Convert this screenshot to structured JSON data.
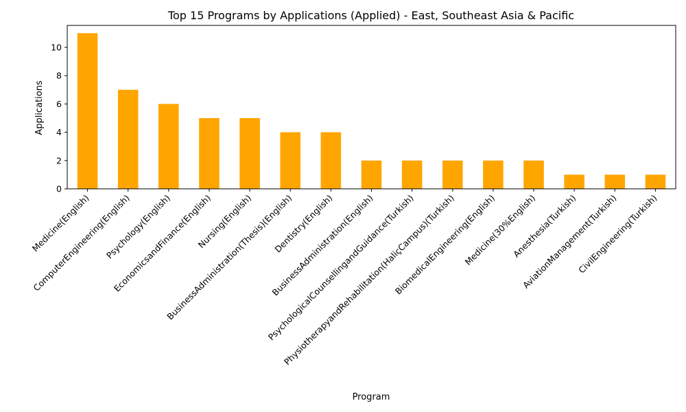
{
  "chart_data": {
    "type": "bar",
    "title": "Top 15 Programs by Applications (Applied) - East, Southeast Asia & Pacific",
    "xlabel": "Program",
    "ylabel": "Applications",
    "categories": [
      "Medicine(English)",
      "ComputerEngineering(English)",
      "Psychology(English)",
      "EconomicsandFinance(English)",
      "Nursing(English)",
      "BusinessAdministration(Thesis)(English)",
      "Dentistry(English)",
      "BusinessAdministration(English)",
      "PsychologicalCounsellingandGuidance(Turkish)",
      "PhysiotherapyandRehabilitation(HaliçCampus)(Turkish)",
      "BiomedicalEngineering(English)",
      "Medicine(30%English)",
      "Anesthesia(Turkish)",
      "AviationManagement(Turkish)",
      "CivilEngineering(Turkish)"
    ],
    "values": [
      11,
      7,
      6,
      5,
      5,
      4,
      4,
      2,
      2,
      2,
      2,
      2,
      1,
      1,
      1
    ],
    "ylim": [
      0,
      11.55
    ],
    "yticks": [
      0,
      2,
      4,
      6,
      8,
      10
    ],
    "grid": false,
    "bar_color": "#FFA500",
    "axis_color": "#000000"
  }
}
